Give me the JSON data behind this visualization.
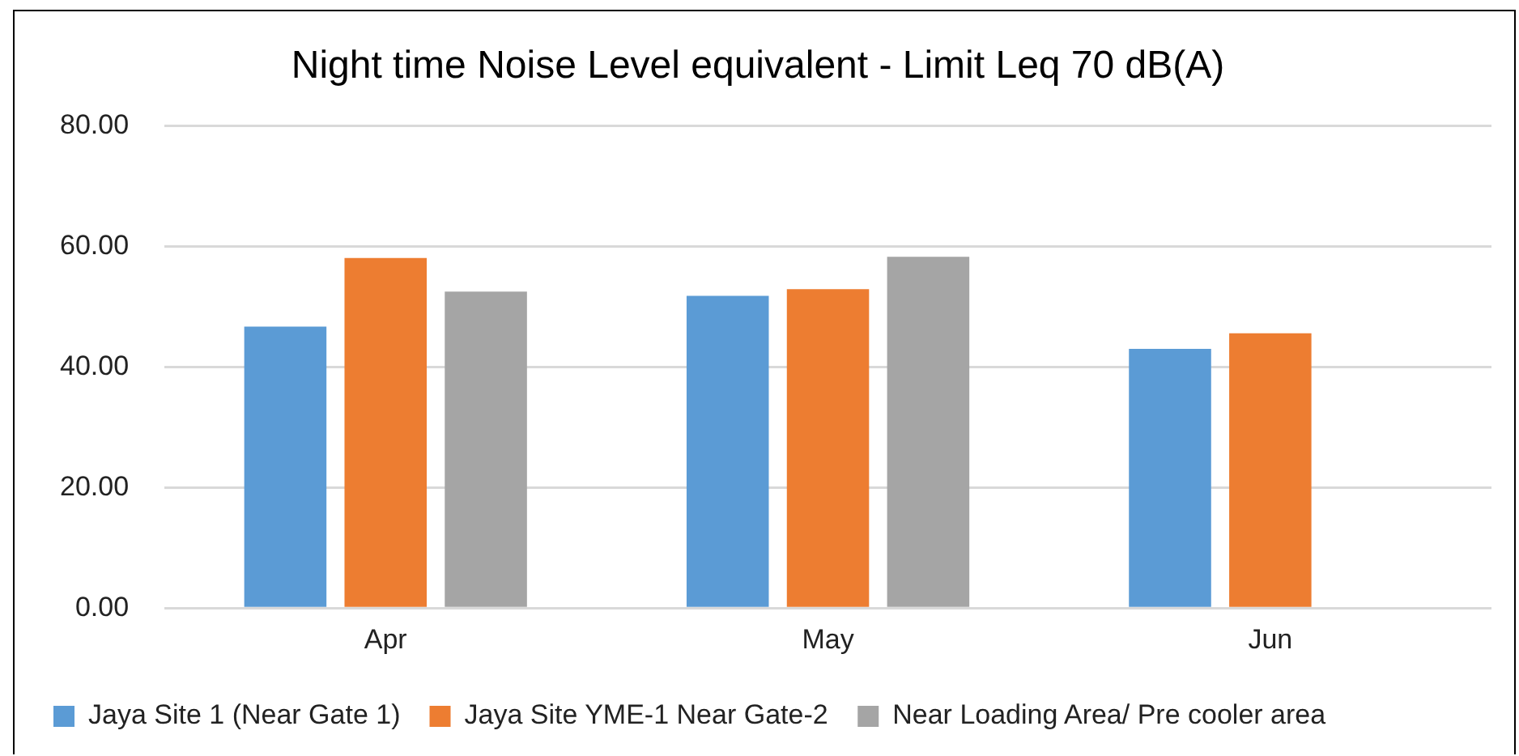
{
  "chart_data": {
    "type": "bar",
    "title": "Night time Noise Level equivalent - Limit Leq 70 dB(A)",
    "categories": [
      "Apr",
      "May",
      "Jun"
    ],
    "series": [
      {
        "name": "Jaya Site 1 (Near Gate 1)",
        "color": "#5b9bd5",
        "values": [
          46.7,
          51.8,
          43.0
        ]
      },
      {
        "name": "Jaya Site YME-1 Near Gate-2",
        "color": "#ed7d31",
        "values": [
          58.1,
          52.9,
          45.6
        ]
      },
      {
        "name": "Near Loading Area/ Pre cooler area",
        "color": "#a5a5a5",
        "values": [
          52.5,
          58.3,
          null
        ]
      }
    ],
    "ylim": [
      0,
      80
    ],
    "yticks": [
      {
        "value": 0,
        "label": "0.00"
      },
      {
        "value": 20,
        "label": "20.00"
      },
      {
        "value": 40,
        "label": "40.00"
      },
      {
        "value": 60,
        "label": "60.00"
      },
      {
        "value": 80,
        "label": "80.00"
      }
    ],
    "grid": "y",
    "legend": "bottom"
  }
}
